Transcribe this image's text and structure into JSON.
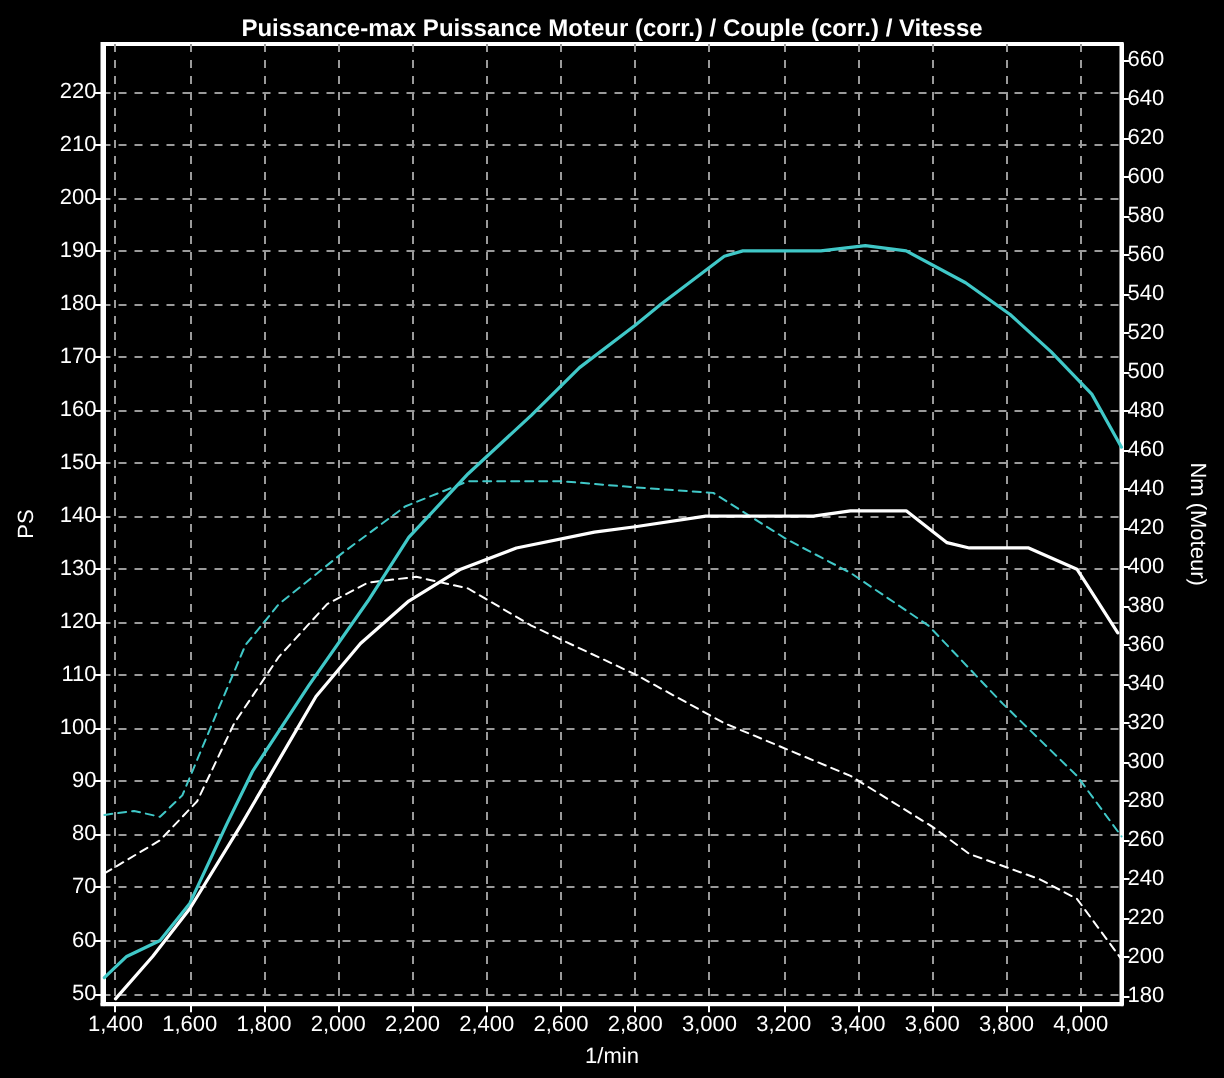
{
  "chart_data": {
    "type": "line",
    "title": "Puissance-max Puissance Moteur (corr.) / Couple (corr.) / Vitesse",
    "xlabel": "1/min",
    "ylabel": "PS",
    "y2label": "Nm (Moteur)",
    "xlim": [
      1365,
      4110
    ],
    "ylim": [
      48,
      229
    ],
    "y2lim": [
      176,
      668
    ],
    "xticks": [
      {
        "value": 1400,
        "label": "1,400"
      },
      {
        "value": 1600,
        "label": "1,600"
      },
      {
        "value": 1800,
        "label": "1,800"
      },
      {
        "value": 2000,
        "label": "2,000"
      },
      {
        "value": 2200,
        "label": "2,200"
      },
      {
        "value": 2400,
        "label": "2,400"
      },
      {
        "value": 2600,
        "label": "2,600"
      },
      {
        "value": 2800,
        "label": "2,800"
      },
      {
        "value": 3000,
        "label": "3,000"
      },
      {
        "value": 3200,
        "label": "3,200"
      },
      {
        "value": 3400,
        "label": "3,400"
      },
      {
        "value": 3600,
        "label": "3,600"
      },
      {
        "value": 3800,
        "label": "3,800"
      },
      {
        "value": 4000,
        "label": "4,000"
      }
    ],
    "yticks": [
      50,
      60,
      70,
      80,
      90,
      100,
      110,
      120,
      130,
      140,
      150,
      160,
      170,
      180,
      190,
      200,
      210,
      220
    ],
    "y2ticks": [
      180,
      200,
      220,
      240,
      260,
      280,
      300,
      320,
      340,
      360,
      380,
      400,
      420,
      440,
      460,
      480,
      500,
      520,
      540,
      560,
      580,
      600,
      620,
      640,
      660
    ],
    "grid": true,
    "marker": "none",
    "series": [
      {
        "color": "#40c8c8",
        "line_style": "solid",
        "x": [
          1370,
          1430,
          1520,
          1600,
          1700,
          1770,
          1920,
          2080,
          2190,
          2350,
          2520,
          2650,
          2800,
          2870,
          3040,
          3090,
          3300,
          3420,
          3530,
          3690,
          3810,
          3920,
          4030,
          4110
        ],
        "values": [
          53,
          57,
          60,
          67,
          82,
          92,
          108,
          124,
          136,
          148,
          159,
          168,
          176,
          180,
          189,
          190,
          190,
          191,
          190,
          184,
          178,
          171,
          163,
          153
        ]
      },
      {
        "color": "#ffffff",
        "line_style": "solid",
        "x": [
          1400,
          1500,
          1600,
          1740,
          1840,
          1940,
          2060,
          2190,
          2330,
          2480,
          2690,
          2800,
          2990,
          3280,
          3380,
          3530,
          3640,
          3700,
          3860,
          3990,
          4100
        ],
        "values": [
          49,
          57,
          66,
          82,
          94,
          106,
          116,
          124,
          130,
          134,
          137,
          138,
          140,
          140,
          141,
          141,
          135,
          134,
          134,
          130,
          118
        ]
      },
      {
        "color": "#40c8c8",
        "line_style": "dashed",
        "axis": "y2",
        "x": [
          1370,
          1450,
          1520,
          1580,
          1670,
          1750,
          1840,
          2010,
          2180,
          2350,
          2600,
          2790,
          3010,
          3210,
          3380,
          3590,
          3790,
          3990,
          4110
        ],
        "values": [
          273,
          275,
          272,
          283,
          324,
          360,
          381,
          407,
          431,
          444,
          444,
          441,
          438,
          414,
          397,
          370,
          330,
          293,
          262
        ]
      },
      {
        "color": "#ffffff",
        "line_style": "dashed",
        "axis": "y2",
        "x": [
          1370,
          1520,
          1620,
          1720,
          1840,
          1970,
          2080,
          2210,
          2350,
          2520,
          2800,
          3040,
          3380,
          3600,
          3700,
          3890,
          3990,
          4110
        ],
        "values": [
          243,
          260,
          280,
          320,
          354,
          381,
          392,
          395,
          389,
          370,
          345,
          320,
          293,
          267,
          253,
          240,
          230,
          199
        ]
      }
    ]
  }
}
